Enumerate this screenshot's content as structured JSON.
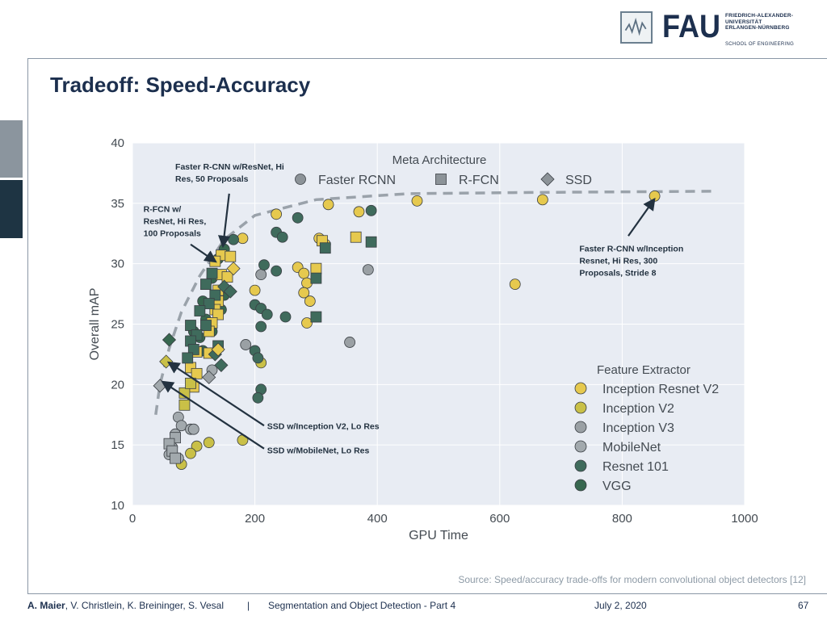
{
  "slide": {
    "title": "Tradeoff: Speed-Accuracy",
    "source": "Source: Speed/accuracy trade-offs for modern convolutional object detectors [12]"
  },
  "logo": {
    "fau": "FAU",
    "university_lines": [
      "FRIEDRICH-ALEXANDER-",
      "UNIVERSITÄT",
      "ERLANGEN-NÜRNBERG"
    ],
    "school": "SCHOOL OF ENGINEERING"
  },
  "footer": {
    "author_lead": "A. Maier",
    "author_rest": ", V. Christlein, K. Breininger, S. Vesal",
    "separator": "|",
    "course": "Segmentation and Object Detection - Part 4",
    "date": "July 2, 2020",
    "page": "67"
  },
  "chart_data": {
    "type": "scatter",
    "xlabel": "GPU Time",
    "ylabel": "Overall mAP",
    "xlim": [
      0,
      1000
    ],
    "ylim": [
      10,
      40
    ],
    "xticks": [
      0,
      200,
      400,
      600,
      800,
      1000
    ],
    "yticks": [
      10,
      15,
      20,
      25,
      30,
      35,
      40
    ],
    "grid": true,
    "meta_legend": {
      "title": "Meta Architecture",
      "placement": "top",
      "items": [
        {
          "name": "Faster RCNN",
          "shape": "circle"
        },
        {
          "name": "R-FCN",
          "shape": "square"
        },
        {
          "name": "SSD",
          "shape": "diamond"
        }
      ]
    },
    "feature_legend": {
      "title": "Feature Extractor",
      "placement": "right",
      "items": [
        {
          "name": "Inception Resnet V2",
          "color": "#e6c94e"
        },
        {
          "name": "Inception V2",
          "color": "#c9c047"
        },
        {
          "name": "Inception V3",
          "color": "#9aa0a4"
        },
        {
          "name": "MobileNet",
          "color": "#a2a9ad"
        },
        {
          "name": "Resnet 101",
          "color": "#3f6b5c"
        },
        {
          "name": "VGG",
          "color": "#37674f"
        }
      ]
    },
    "frontier": [
      [
        38,
        17.5
      ],
      [
        45,
        20
      ],
      [
        60,
        23
      ],
      [
        80,
        26
      ],
      [
        110,
        29
      ],
      [
        150,
        32
      ],
      [
        200,
        34
      ],
      [
        300,
        35.3
      ],
      [
        450,
        35.8
      ],
      [
        650,
        35.9
      ],
      [
        950,
        36
      ]
    ],
    "annotations": [
      {
        "lines": [
          "Faster R-CNN w/ResNet, Hi",
          "Res, 50 Proposals"
        ],
        "label_at": [
          70,
          37.8
        ],
        "arrow_from": [
          158,
          35.8
        ],
        "arrow_to": [
          148,
          31.5
        ]
      },
      {
        "lines": [
          "R-FCN w/",
          "ResNet, Hi Res,",
          "100 Proposals"
        ],
        "label_at": [
          18,
          34.3
        ],
        "arrow_from": [
          95,
          31.6
        ],
        "arrow_to": [
          135,
          30.2
        ]
      },
      {
        "lines": [
          "Faster R-CNN w/Inception",
          "Resnet, Hi Res, 300",
          "Proposals, Stride 8"
        ],
        "label_at": [
          730,
          31
        ],
        "arrow_from": [
          810,
          32.3
        ],
        "arrow_to": [
          852,
          35.3
        ]
      },
      {
        "lines": [
          "SSD w/Inception V2, Lo Res"
        ],
        "label_at": [
          220,
          16.3
        ],
        "arrow_from": [
          215,
          16.6
        ],
        "arrow_to": [
          60,
          21.8
        ]
      },
      {
        "lines": [
          "SSD w/MobileNet, Lo Res"
        ],
        "label_at": [
          220,
          14.3
        ],
        "arrow_from": [
          215,
          14.7
        ],
        "arrow_to": [
          50,
          20.2
        ]
      }
    ],
    "points": [
      {
        "x": 853,
        "y": 35.6,
        "shape": "circle",
        "feature": "Inception Resnet V2"
      },
      {
        "x": 670,
        "y": 35.3,
        "shape": "circle",
        "feature": "Inception Resnet V2"
      },
      {
        "x": 465,
        "y": 35.2,
        "shape": "circle",
        "feature": "Inception Resnet V2"
      },
      {
        "x": 320,
        "y": 34.9,
        "shape": "circle",
        "feature": "Inception Resnet V2"
      },
      {
        "x": 370,
        "y": 34.3,
        "shape": "circle",
        "feature": "Inception Resnet V2"
      },
      {
        "x": 235,
        "y": 34.1,
        "shape": "circle",
        "feature": "Inception Resnet V2"
      },
      {
        "x": 625,
        "y": 28.3,
        "shape": "circle",
        "feature": "Inception Resnet V2"
      },
      {
        "x": 305,
        "y": 32.1,
        "shape": "circle",
        "feature": "Inception Resnet V2"
      },
      {
        "x": 315,
        "y": 31.6,
        "shape": "circle",
        "feature": "Inception Resnet V2"
      },
      {
        "x": 270,
        "y": 29.7,
        "shape": "circle",
        "feature": "Inception Resnet V2"
      },
      {
        "x": 280,
        "y": 29.2,
        "shape": "circle",
        "feature": "Inception Resnet V2"
      },
      {
        "x": 285,
        "y": 28.4,
        "shape": "circle",
        "feature": "Inception Resnet V2"
      },
      {
        "x": 280,
        "y": 27.6,
        "shape": "circle",
        "feature": "Inception Resnet V2"
      },
      {
        "x": 290,
        "y": 26.9,
        "shape": "circle",
        "feature": "Inception Resnet V2"
      },
      {
        "x": 285,
        "y": 25.1,
        "shape": "circle",
        "feature": "Inception Resnet V2"
      },
      {
        "x": 200,
        "y": 27.8,
        "shape": "circle",
        "feature": "Inception Resnet V2"
      },
      {
        "x": 180,
        "y": 32.1,
        "shape": "circle",
        "feature": "Inception Resnet V2"
      },
      {
        "x": 210,
        "y": 21.8,
        "shape": "circle",
        "feature": "Inception V2"
      },
      {
        "x": 180,
        "y": 15.4,
        "shape": "circle",
        "feature": "Inception V2"
      },
      {
        "x": 125,
        "y": 15.2,
        "shape": "circle",
        "feature": "Inception V2"
      },
      {
        "x": 105,
        "y": 14.9,
        "shape": "circle",
        "feature": "Inception V2"
      },
      {
        "x": 95,
        "y": 14.3,
        "shape": "circle",
        "feature": "Inception V2"
      },
      {
        "x": 80,
        "y": 13.4,
        "shape": "circle",
        "feature": "Inception V2"
      },
      {
        "x": 385,
        "y": 29.5,
        "shape": "circle",
        "feature": "Inception V3"
      },
      {
        "x": 355,
        "y": 23.5,
        "shape": "circle",
        "feature": "Inception V3"
      },
      {
        "x": 185,
        "y": 23.3,
        "shape": "circle",
        "feature": "Inception V3"
      },
      {
        "x": 210,
        "y": 29.1,
        "shape": "circle",
        "feature": "Inception V3"
      },
      {
        "x": 75,
        "y": 17.3,
        "shape": "circle",
        "feature": "MobileNet"
      },
      {
        "x": 80,
        "y": 16.6,
        "shape": "circle",
        "feature": "MobileNet"
      },
      {
        "x": 95,
        "y": 16.3,
        "shape": "circle",
        "feature": "MobileNet"
      },
      {
        "x": 100,
        "y": 16.3,
        "shape": "circle",
        "feature": "MobileNet"
      },
      {
        "x": 70,
        "y": 15.9,
        "shape": "circle",
        "feature": "MobileNet"
      },
      {
        "x": 65,
        "y": 14.8,
        "shape": "circle",
        "feature": "MobileNet"
      },
      {
        "x": 60,
        "y": 14.2,
        "shape": "circle",
        "feature": "MobileNet"
      },
      {
        "x": 75,
        "y": 13.9,
        "shape": "circle",
        "feature": "MobileNet"
      },
      {
        "x": 130,
        "y": 21.2,
        "shape": "circle",
        "feature": "MobileNet"
      },
      {
        "x": 390,
        "y": 34.4,
        "shape": "circle",
        "feature": "Resnet 101"
      },
      {
        "x": 270,
        "y": 33.8,
        "shape": "circle",
        "feature": "Resnet 101"
      },
      {
        "x": 235,
        "y": 32.6,
        "shape": "circle",
        "feature": "Resnet 101"
      },
      {
        "x": 245,
        "y": 32.2,
        "shape": "circle",
        "feature": "Resnet 101"
      },
      {
        "x": 165,
        "y": 32.0,
        "shape": "circle",
        "feature": "Resnet 101"
      },
      {
        "x": 215,
        "y": 29.9,
        "shape": "circle",
        "feature": "Resnet 101"
      },
      {
        "x": 235,
        "y": 29.4,
        "shape": "circle",
        "feature": "Resnet 101"
      },
      {
        "x": 200,
        "y": 26.6,
        "shape": "circle",
        "feature": "Resnet 101"
      },
      {
        "x": 210,
        "y": 26.3,
        "shape": "circle",
        "feature": "Resnet 101"
      },
      {
        "x": 220,
        "y": 25.8,
        "shape": "circle",
        "feature": "Resnet 101"
      },
      {
        "x": 250,
        "y": 25.6,
        "shape": "circle",
        "feature": "Resnet 101"
      },
      {
        "x": 210,
        "y": 24.8,
        "shape": "circle",
        "feature": "Resnet 101"
      },
      {
        "x": 200,
        "y": 22.8,
        "shape": "circle",
        "feature": "Resnet 101"
      },
      {
        "x": 205,
        "y": 22.2,
        "shape": "circle",
        "feature": "Resnet 101"
      },
      {
        "x": 210,
        "y": 19.6,
        "shape": "circle",
        "feature": "Resnet 101"
      },
      {
        "x": 205,
        "y": 18.9,
        "shape": "circle",
        "feature": "Resnet 101"
      },
      {
        "x": 150,
        "y": 31.2,
        "shape": "circle",
        "feature": "VGG"
      },
      {
        "x": 140,
        "y": 30.4,
        "shape": "circle",
        "feature": "VGG"
      },
      {
        "x": 130,
        "y": 28.8,
        "shape": "circle",
        "feature": "VGG"
      },
      {
        "x": 150,
        "y": 27.4,
        "shape": "circle",
        "feature": "VGG"
      },
      {
        "x": 115,
        "y": 26.9,
        "shape": "circle",
        "feature": "VGG"
      },
      {
        "x": 145,
        "y": 26.2,
        "shape": "circle",
        "feature": "VGG"
      },
      {
        "x": 120,
        "y": 25.4,
        "shape": "circle",
        "feature": "VGG"
      },
      {
        "x": 130,
        "y": 24.4,
        "shape": "circle",
        "feature": "VGG"
      },
      {
        "x": 110,
        "y": 23.9,
        "shape": "circle",
        "feature": "VGG"
      },
      {
        "x": 115,
        "y": 22.8,
        "shape": "circle",
        "feature": "VGG"
      },
      {
        "x": 100,
        "y": 24.4,
        "shape": "circle",
        "feature": "VGG"
      },
      {
        "x": 145,
        "y": 30.7,
        "shape": "square",
        "feature": "Inception Resnet V2"
      },
      {
        "x": 160,
        "y": 30.6,
        "shape": "square",
        "feature": "Inception Resnet V2"
      },
      {
        "x": 135,
        "y": 30.2,
        "shape": "square",
        "feature": "Inception Resnet V2"
      },
      {
        "x": 145,
        "y": 29.1,
        "shape": "square",
        "feature": "Inception Resnet V2"
      },
      {
        "x": 155,
        "y": 28.9,
        "shape": "square",
        "feature": "Inception Resnet V2"
      },
      {
        "x": 140,
        "y": 27.8,
        "shape": "square",
        "feature": "Inception Resnet V2"
      },
      {
        "x": 140,
        "y": 26.9,
        "shape": "square",
        "feature": "Inception Resnet V2"
      },
      {
        "x": 135,
        "y": 26.2,
        "shape": "square",
        "feature": "Inception Resnet V2"
      },
      {
        "x": 140,
        "y": 25.8,
        "shape": "square",
        "feature": "Inception Resnet V2"
      },
      {
        "x": 130,
        "y": 25.1,
        "shape": "square",
        "feature": "Inception Resnet V2"
      },
      {
        "x": 125,
        "y": 24.4,
        "shape": "square",
        "feature": "Inception Resnet V2"
      },
      {
        "x": 125,
        "y": 22.6,
        "shape": "square",
        "feature": "Inception Resnet V2"
      },
      {
        "x": 105,
        "y": 22.7,
        "shape": "square",
        "feature": "Inception Resnet V2"
      },
      {
        "x": 95,
        "y": 21.4,
        "shape": "square",
        "feature": "Inception Resnet V2"
      },
      {
        "x": 105,
        "y": 20.9,
        "shape": "square",
        "feature": "Inception Resnet V2"
      },
      {
        "x": 100,
        "y": 19.8,
        "shape": "square",
        "feature": "Inception Resnet V2"
      },
      {
        "x": 365,
        "y": 32.2,
        "shape": "square",
        "feature": "Inception Resnet V2"
      },
      {
        "x": 310,
        "y": 31.9,
        "shape": "square",
        "feature": "Inception Resnet V2"
      },
      {
        "x": 300,
        "y": 29.6,
        "shape": "square",
        "feature": "Inception Resnet V2"
      },
      {
        "x": 85,
        "y": 19.3,
        "shape": "square",
        "feature": "Inception V2"
      },
      {
        "x": 85,
        "y": 18.3,
        "shape": "square",
        "feature": "Inception V2"
      },
      {
        "x": 95,
        "y": 20.1,
        "shape": "square",
        "feature": "Inception V2"
      },
      {
        "x": 70,
        "y": 15.6,
        "shape": "square",
        "feature": "MobileNet"
      },
      {
        "x": 60,
        "y": 15.1,
        "shape": "square",
        "feature": "MobileNet"
      },
      {
        "x": 65,
        "y": 14.5,
        "shape": "square",
        "feature": "MobileNet"
      },
      {
        "x": 70,
        "y": 13.9,
        "shape": "square",
        "feature": "MobileNet"
      },
      {
        "x": 390,
        "y": 31.8,
        "shape": "square",
        "feature": "Resnet 101"
      },
      {
        "x": 315,
        "y": 31.3,
        "shape": "square",
        "feature": "Resnet 101"
      },
      {
        "x": 300,
        "y": 28.8,
        "shape": "square",
        "feature": "Resnet 101"
      },
      {
        "x": 300,
        "y": 25.6,
        "shape": "square",
        "feature": "Resnet 101"
      },
      {
        "x": 130,
        "y": 29.2,
        "shape": "square",
        "feature": "Resnet 101"
      },
      {
        "x": 120,
        "y": 28.3,
        "shape": "square",
        "feature": "Resnet 101"
      },
      {
        "x": 135,
        "y": 27.4,
        "shape": "square",
        "feature": "Resnet 101"
      },
      {
        "x": 125,
        "y": 26.7,
        "shape": "square",
        "feature": "Resnet 101"
      },
      {
        "x": 110,
        "y": 26.1,
        "shape": "square",
        "feature": "Resnet 101"
      },
      {
        "x": 120,
        "y": 24.9,
        "shape": "square",
        "feature": "Resnet 101"
      },
      {
        "x": 95,
        "y": 24.9,
        "shape": "square",
        "feature": "Resnet 101"
      },
      {
        "x": 105,
        "y": 24.1,
        "shape": "square",
        "feature": "Resnet 101"
      },
      {
        "x": 95,
        "y": 23.6,
        "shape": "square",
        "feature": "Resnet 101"
      },
      {
        "x": 100,
        "y": 22.9,
        "shape": "square",
        "feature": "Resnet 101"
      },
      {
        "x": 90,
        "y": 22.2,
        "shape": "square",
        "feature": "Resnet 101"
      },
      {
        "x": 140,
        "y": 23.2,
        "shape": "square",
        "feature": "Resnet 101"
      },
      {
        "x": 150,
        "y": 28.1,
        "shape": "diamond",
        "feature": "Resnet 101"
      },
      {
        "x": 160,
        "y": 27.7,
        "shape": "diamond",
        "feature": "Resnet 101"
      },
      {
        "x": 135,
        "y": 22.5,
        "shape": "diamond",
        "feature": "Resnet 101"
      },
      {
        "x": 145,
        "y": 21.6,
        "shape": "diamond",
        "feature": "Resnet 101"
      },
      {
        "x": 60,
        "y": 23.7,
        "shape": "diamond",
        "feature": "VGG"
      },
      {
        "x": 140,
        "y": 22.9,
        "shape": "diamond",
        "feature": "Inception Resnet V2"
      },
      {
        "x": 55,
        "y": 21.9,
        "shape": "diamond",
        "feature": "Inception V2"
      },
      {
        "x": 125,
        "y": 20.6,
        "shape": "diamond",
        "feature": "Inception V3"
      },
      {
        "x": 45,
        "y": 19.9,
        "shape": "diamond",
        "feature": "MobileNet"
      },
      {
        "x": 165,
        "y": 29.6,
        "shape": "diamond",
        "feature": "Inception Resnet V2"
      }
    ]
  }
}
